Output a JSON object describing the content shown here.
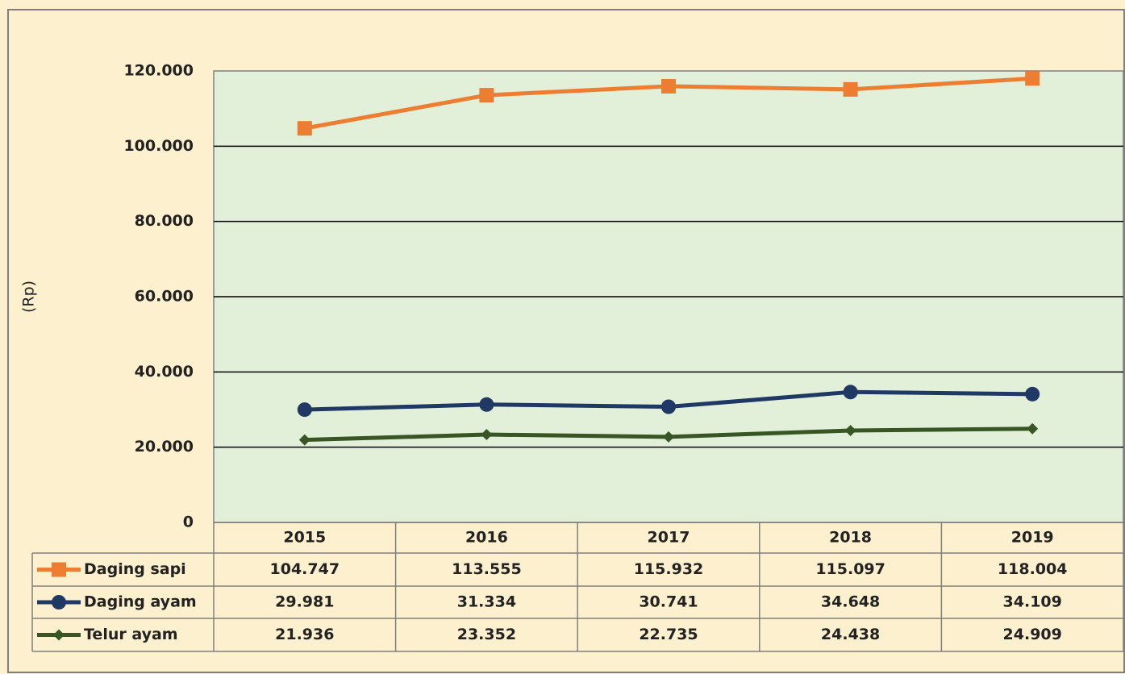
{
  "chart_data": {
    "type": "line",
    "ylabel": "(Rp)",
    "categories": [
      "2015",
      "2016",
      "2017",
      "2018",
      "2019"
    ],
    "series": [
      {
        "name": "Daging sapi",
        "color": "#ed7d31",
        "marker": "square",
        "values": [
          104747,
          113555,
          115932,
          115097,
          118004
        ],
        "value_labels": [
          "104.747",
          "113.555",
          "115.932",
          "115.097",
          "118.004"
        ]
      },
      {
        "name": "Daging ayam",
        "color": "#1f3864",
        "marker": "circle",
        "values": [
          29981,
          31334,
          30741,
          34648,
          34109
        ],
        "value_labels": [
          "29.981",
          "31.334",
          "30.741",
          "34.648",
          "34.109"
        ]
      },
      {
        "name": "Telur ayam",
        "color": "#375623",
        "marker": "diamond",
        "values": [
          21936,
          23352,
          22735,
          24438,
          24909
        ],
        "value_labels": [
          "21.936",
          "23.352",
          "22.735",
          "24.438",
          "24.909"
        ]
      }
    ],
    "ylim": [
      0,
      120000
    ],
    "yticks": [
      0,
      {
        "value": 20000,
        "label": "20.000"
      },
      {
        "value": 40000,
        "label": "40.000"
      },
      {
        "value": 60000,
        "label": "60.000"
      },
      {
        "value": 80000,
        "label": "80.000"
      },
      {
        "value": 100000,
        "label": "100.000"
      },
      {
        "value": 120000,
        "label": "120.000"
      }
    ],
    "grid": true
  }
}
